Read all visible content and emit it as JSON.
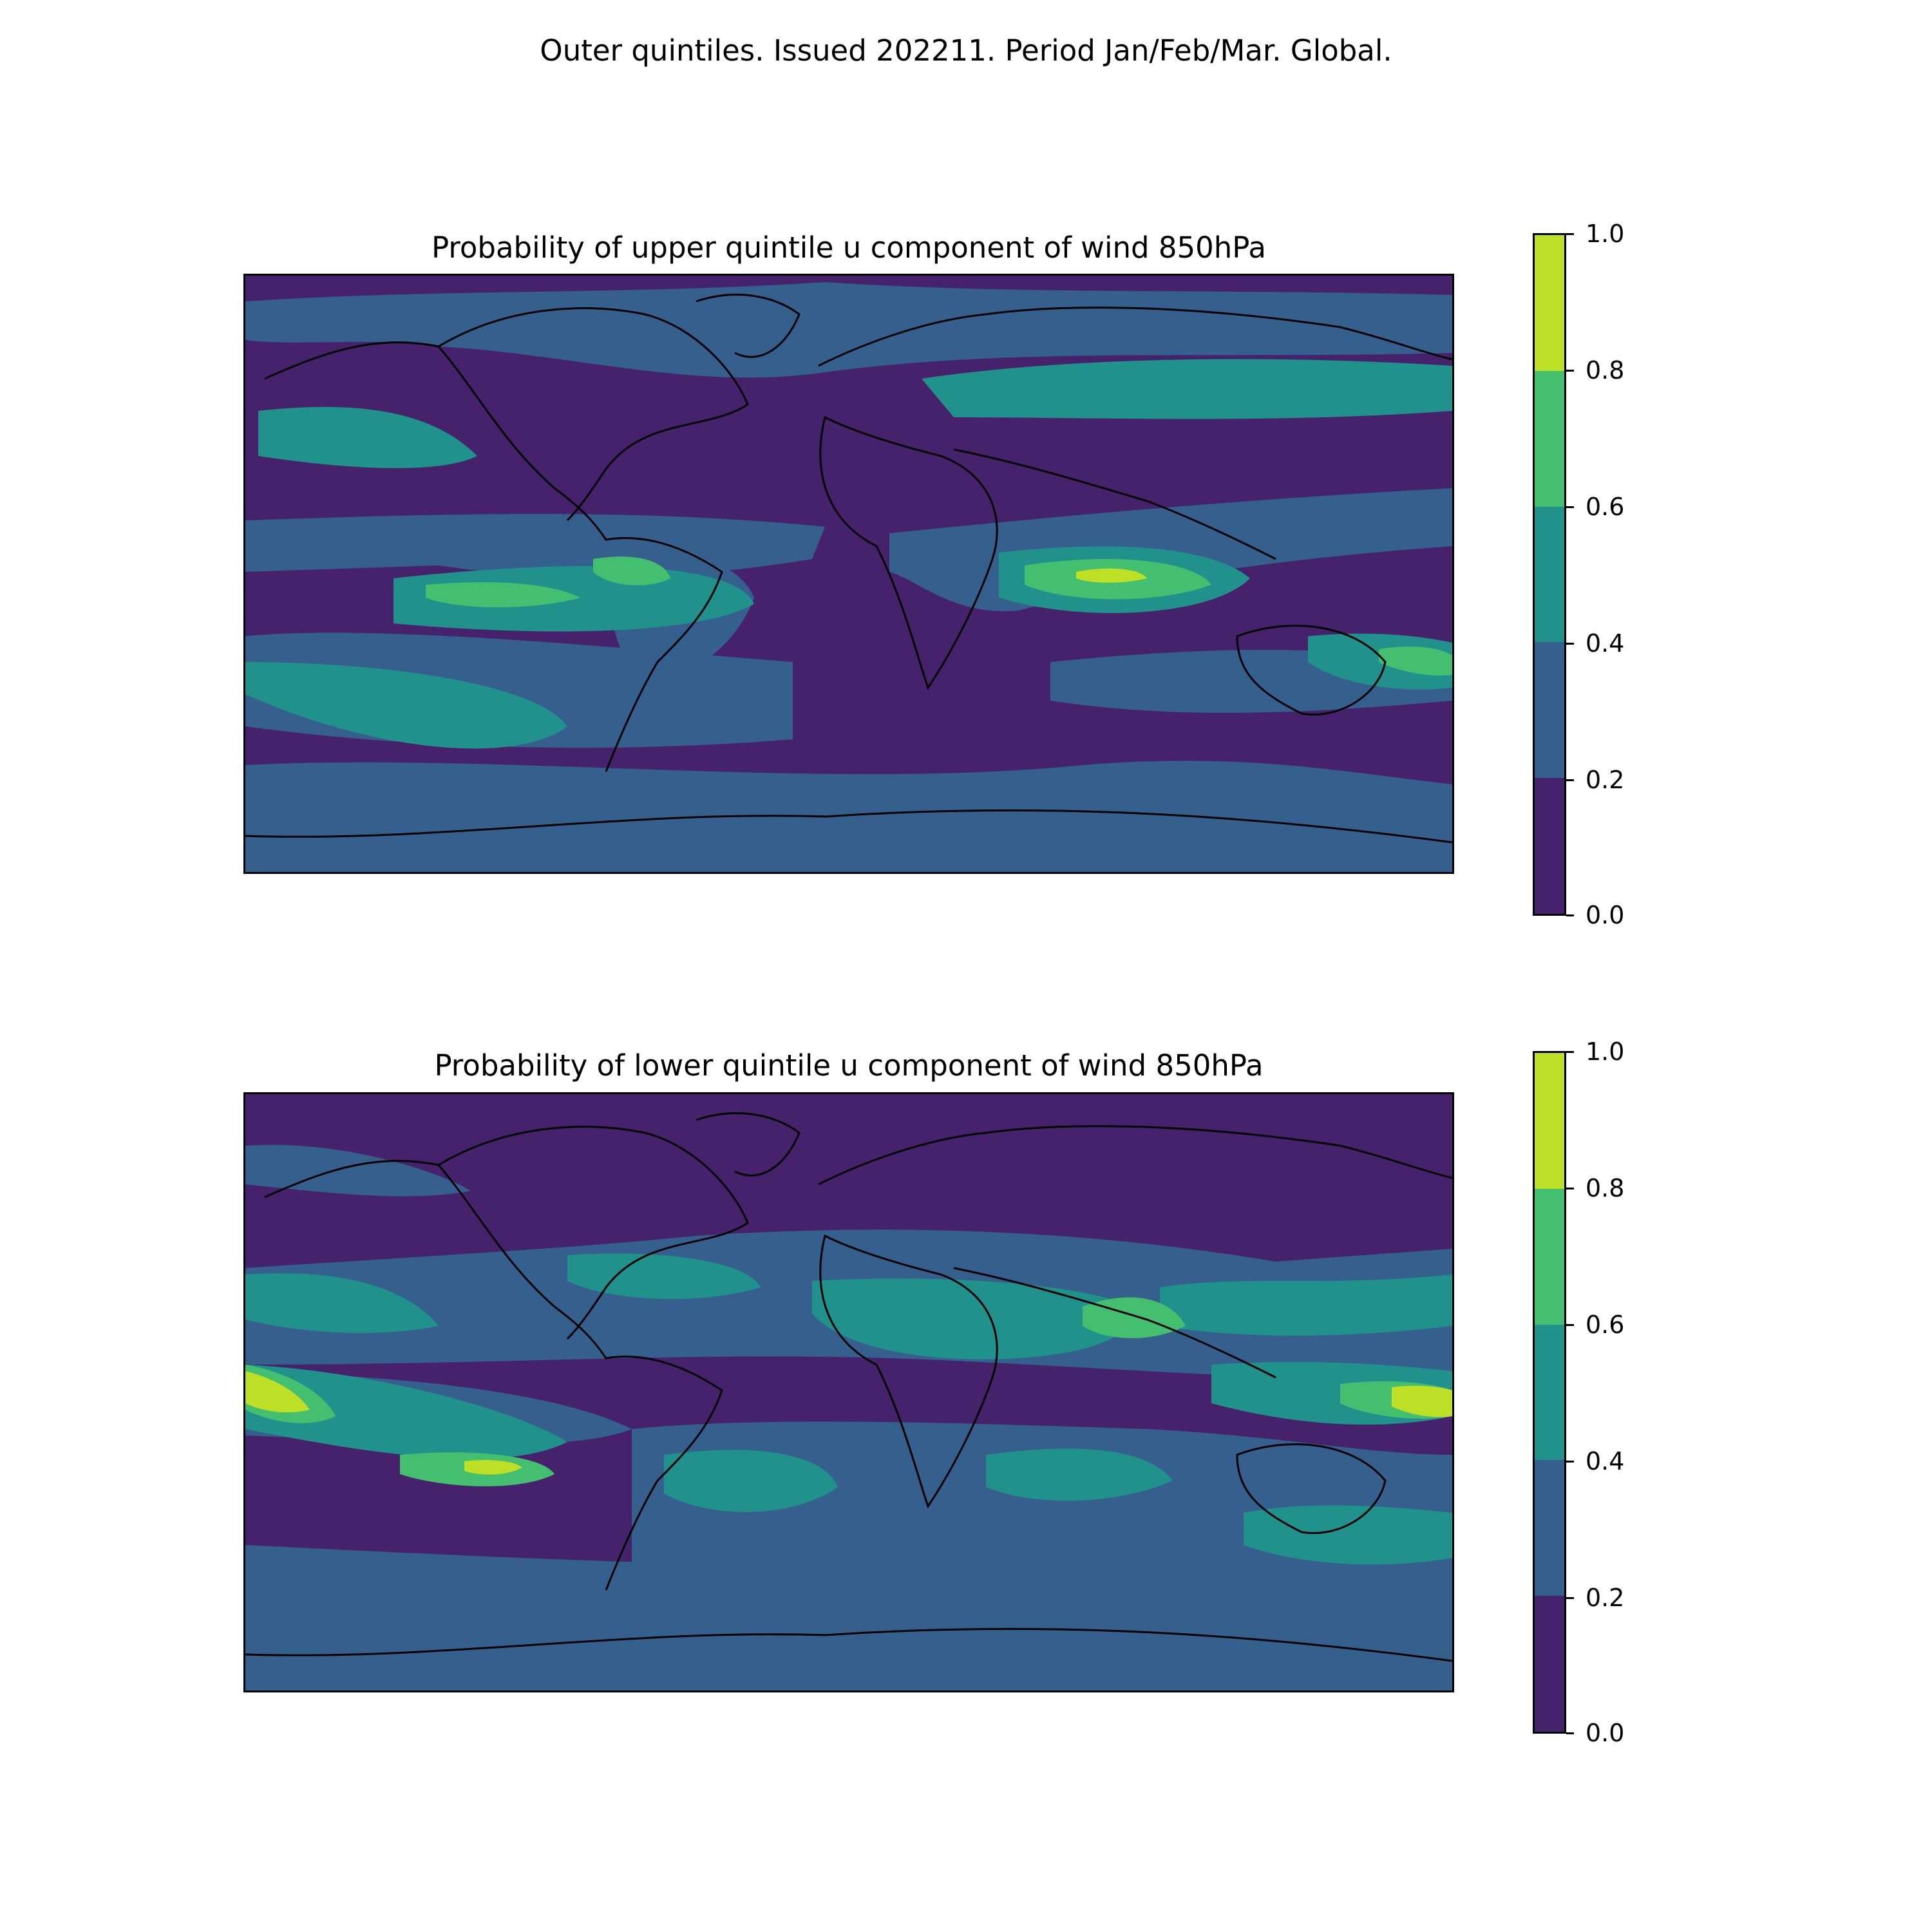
{
  "suptitle": "Outer quintiles. Issued 202211. Period Jan/Feb/Mar. Global.",
  "colorbar": {
    "levels": [
      0.0,
      0.2,
      0.4,
      0.6,
      0.8,
      1.0
    ],
    "tick_labels": [
      "0.0",
      "0.2",
      "0.4",
      "0.6",
      "0.8",
      "1.0"
    ],
    "colors": [
      "#46226d",
      "#355f8d",
      "#21918c",
      "#44bf70",
      "#bddf26"
    ]
  },
  "panels": [
    {
      "title": "Probability of upper quintile u component of wind 850hPa",
      "variable": "upper quintile u component of wind 850hPa"
    },
    {
      "title": "Probability of lower quintile u component of wind 850hPa",
      "variable": "lower quintile u component of wind 850hPa"
    }
  ]
}
